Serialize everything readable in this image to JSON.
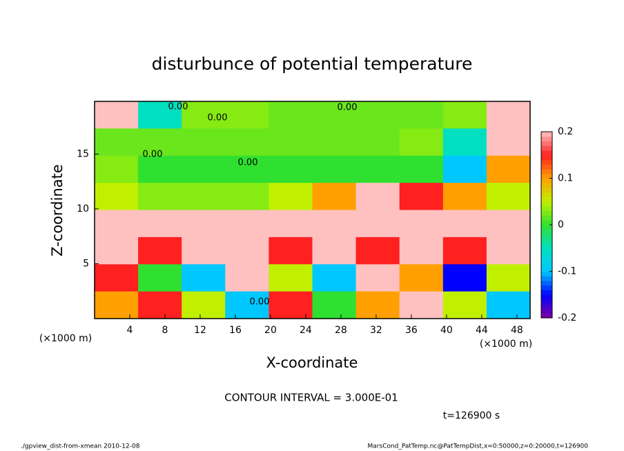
{
  "chart_data": {
    "type": "heatmap",
    "title": "disturbunce of potential temperature",
    "xlabel": "X-coordinate",
    "ylabel": "Z-coordinate",
    "x_unit": "(×1000 m)",
    "y_unit": "(×1000 m)",
    "xlim": [
      0,
      49.5
    ],
    "ylim": [
      0,
      19.8
    ],
    "xticks": [
      4,
      8,
      12,
      16,
      20,
      24,
      28,
      32,
      36,
      40,
      44,
      48
    ],
    "yticks": [
      5,
      10,
      15
    ],
    "clim": [
      -0.2,
      0.2
    ],
    "cticks": [
      -0.2,
      -0.1,
      0,
      0.1,
      0.2
    ],
    "colormap": [
      "#8000a0",
      "#0000ff",
      "#00c8ff",
      "#00e0c0",
      "#30e030",
      "#c0f000",
      "#ffa000",
      "#ff2020",
      "#ffc0c0"
    ],
    "z": [
      [
        0.2,
        -0.05,
        0.03,
        0.03,
        0.02,
        0.02,
        0.02,
        0.02,
        0.03,
        0.2
      ],
      [
        0.02,
        0.02,
        0.02,
        0.02,
        0.02,
        0.02,
        0.02,
        0.03,
        -0.05,
        0.2
      ],
      [
        0.03,
        0,
        0,
        0,
        0,
        0,
        0,
        0,
        -0.1,
        0.1
      ],
      [
        0.05,
        0.03,
        0.03,
        0.03,
        0.05,
        0.1,
        0.2,
        0.15,
        0.1,
        0.05
      ],
      [
        0.2,
        0.2,
        0.2,
        0.2,
        0.2,
        0.2,
        0.2,
        0.2,
        0.2,
        0.2
      ],
      [
        0.2,
        0.15,
        0.2,
        0.2,
        0.15,
        0.2,
        0.15,
        0.2,
        0.15,
        0.2
      ],
      [
        0.15,
        0,
        -0.1,
        0.2,
        0.05,
        -0.1,
        0.2,
        0.1,
        -0.15,
        0.05
      ],
      [
        0.1,
        0.15,
        0.05,
        -0.1,
        0.15,
        0,
        0.1,
        0.2,
        0.05,
        -0.1
      ]
    ],
    "contour_labels": [
      "0.00",
      "0.00",
      "0.00",
      "0.00",
      "0.00",
      "0.00"
    ],
    "contour_interval": "CONTOUR INTERVAL = 3.000E-01",
    "time_label": "t=126900 s",
    "footer_left": "./gpview_dist-from-xmean  2010-12-08",
    "footer_right": "MarsCond_PatTemp.nc@PatTempDist,x=0:50000,z=0:20000,t=126900"
  }
}
